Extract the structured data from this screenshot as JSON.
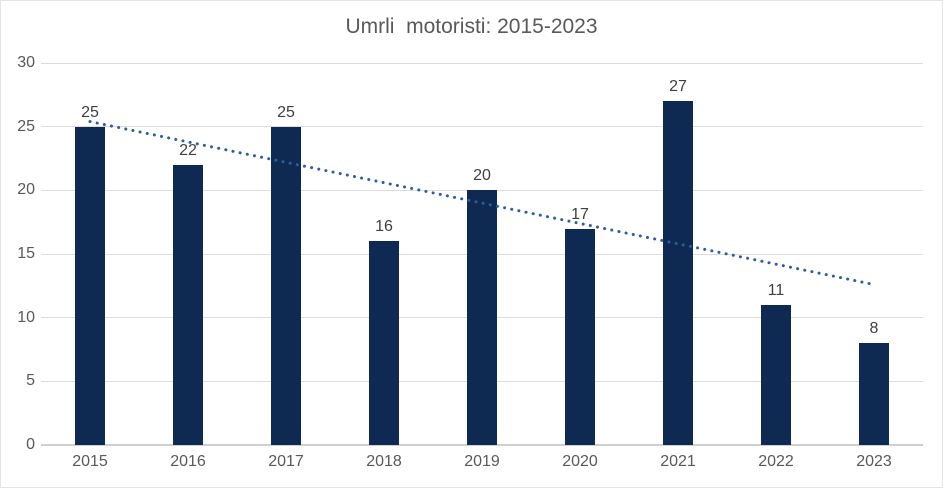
{
  "chart_data": {
    "type": "bar",
    "title": "Umrli  motoristi: 2015-2023",
    "categories": [
      "2015",
      "2016",
      "2017",
      "2018",
      "2019",
      "2020",
      "2021",
      "2022",
      "2023"
    ],
    "values": [
      25,
      22,
      25,
      16,
      20,
      17,
      27,
      11,
      8
    ],
    "data_labels": [
      "25",
      "22",
      "25",
      "16",
      "20",
      "17",
      "27",
      "11",
      "8"
    ],
    "xlabel": "",
    "ylabel": "",
    "ylim": [
      0,
      30
    ],
    "yticks": [
      0,
      5,
      10,
      15,
      20,
      25,
      30
    ],
    "grid": true,
    "legend": "none",
    "bar_color": "#0e2a52",
    "data_label_color": "#404040",
    "axis_text_color": "#595959",
    "gridline_color": "#dcdcdc",
    "axis_line_color": "#cfcfcf",
    "title_color": "#595959",
    "trendline": {
      "style": "dotted",
      "color": "#2e5c9e",
      "start_value": 25.4,
      "end_value": 12.6
    }
  }
}
